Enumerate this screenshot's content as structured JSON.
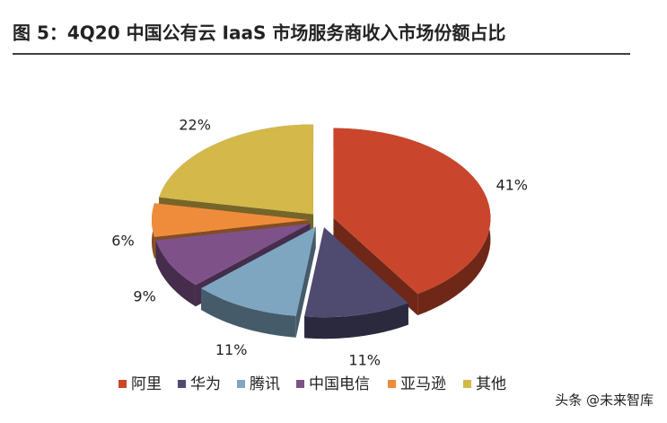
{
  "chart_data": {
    "type": "pie",
    "title": "图 5：4Q20 中国公有云 IaaS 市场服务商收入市场份额占比",
    "categories": [
      "阿里",
      "华为",
      "腾讯",
      "中国电信",
      "亚马逊",
      "其他"
    ],
    "values": [
      41,
      11,
      11,
      9,
      6,
      22
    ],
    "value_labels": [
      "41%",
      "11%",
      "11%",
      "9%",
      "6%",
      "22%"
    ],
    "colors": [
      "#c9462c",
      "#4f4b70",
      "#7ea6c0",
      "#7e5289",
      "#ef8c3b",
      "#d4b84a"
    ],
    "watermark": "头条 @未来智库"
  }
}
